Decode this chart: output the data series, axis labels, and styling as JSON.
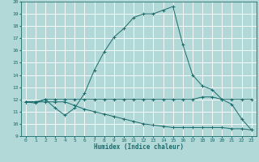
{
  "xlabel": "Humidex (Indice chaleur)",
  "bg_color": "#b2d8d8",
  "grid_color": "#ffffff",
  "line_color": "#1a6b6b",
  "xlim": [
    -0.5,
    23.5
  ],
  "ylim": [
    9,
    20
  ],
  "xticks": [
    0,
    1,
    2,
    3,
    4,
    5,
    6,
    7,
    8,
    9,
    10,
    11,
    12,
    13,
    14,
    15,
    16,
    17,
    18,
    19,
    20,
    21,
    22,
    23
  ],
  "yticks": [
    9,
    10,
    11,
    12,
    13,
    14,
    15,
    16,
    17,
    18,
    19,
    20
  ],
  "curve1_x": [
    0,
    1,
    2,
    3,
    4,
    5,
    6,
    7,
    8,
    9,
    10,
    11,
    12,
    13,
    14,
    15,
    16,
    17,
    18,
    19,
    20,
    21,
    22,
    23
  ],
  "curve1_y": [
    11.8,
    11.7,
    12.0,
    11.3,
    10.7,
    11.3,
    12.5,
    14.4,
    15.9,
    17.1,
    17.8,
    18.7,
    19.0,
    19.0,
    19.3,
    19.6,
    16.5,
    14.0,
    13.1,
    12.8,
    12.0,
    11.6,
    10.4,
    9.5
  ],
  "curve2_x": [
    0,
    1,
    2,
    3,
    4,
    5,
    6,
    7,
    8,
    9,
    10,
    11,
    12,
    13,
    14,
    15,
    16,
    17,
    18,
    19,
    20,
    21,
    22,
    23
  ],
  "curve2_y": [
    11.8,
    11.8,
    12.0,
    12.0,
    12.0,
    12.0,
    12.0,
    12.0,
    12.0,
    12.0,
    12.0,
    12.0,
    12.0,
    12.0,
    12.0,
    12.0,
    12.0,
    12.0,
    12.2,
    12.2,
    12.0,
    12.0,
    12.0,
    12.0
  ],
  "curve3_x": [
    0,
    1,
    2,
    3,
    4,
    5,
    6,
    7,
    8,
    9,
    10,
    11,
    12,
    13,
    14,
    15,
    16,
    17,
    18,
    19,
    20,
    21,
    22,
    23
  ],
  "curve3_y": [
    11.8,
    11.8,
    11.8,
    11.8,
    11.8,
    11.5,
    11.2,
    11.0,
    10.8,
    10.6,
    10.4,
    10.2,
    10.0,
    9.9,
    9.8,
    9.7,
    9.7,
    9.7,
    9.7,
    9.7,
    9.7,
    9.6,
    9.6,
    9.5
  ],
  "xlabel_fontsize": 5.5,
  "tick_labelsize": 4.5,
  "linewidth": 0.7,
  "markersize": 2.5,
  "markeredgewidth": 0.7
}
